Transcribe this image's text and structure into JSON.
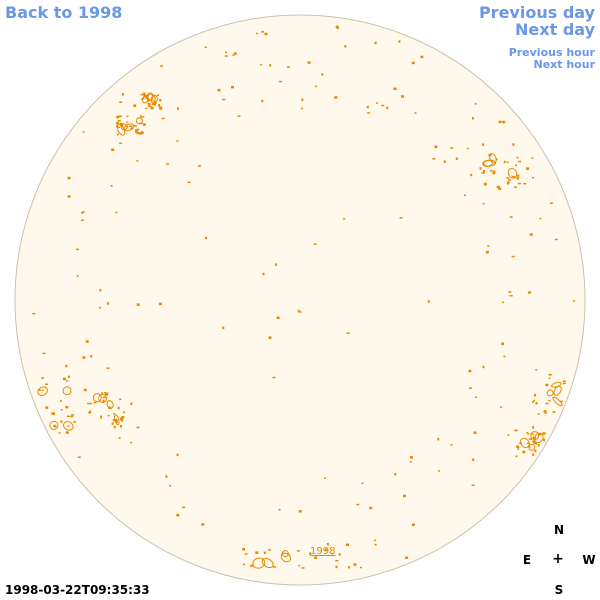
{
  "nav": {
    "back_label": "Back to 1998",
    "prev_day_label": "Previous day",
    "next_day_label": "Next day",
    "prev_hour_label": "Previous hour",
    "next_hour_label": "Next hour"
  },
  "image": {
    "disk_fill": "#fff9ed",
    "disk_stroke": "#c9c2b0",
    "contour_color": "#e68a00",
    "year_marker": "1998",
    "timestamp": "1998-03-22T09:35:33"
  },
  "compass": {
    "north": "N",
    "south": "S",
    "east": "E",
    "west": "W",
    "center": "+"
  }
}
